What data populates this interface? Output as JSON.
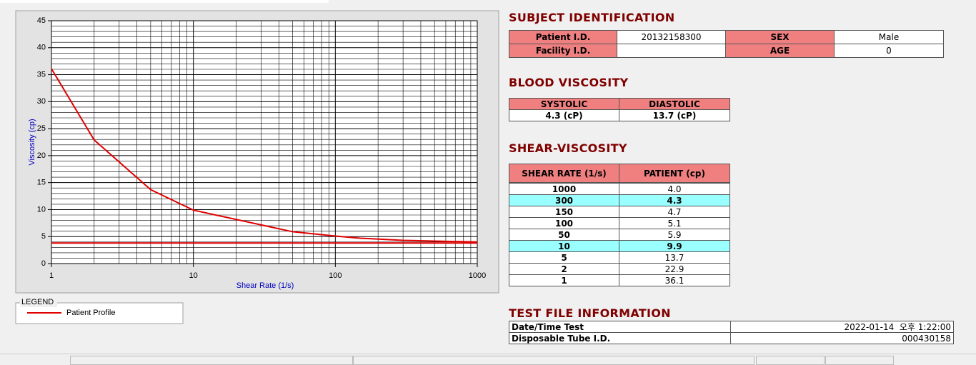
{
  "chart_data": {
    "type": "line",
    "x_label": "Shear Rate (1/s)",
    "y_label": "Viscosity (cp)",
    "xlim": [
      1,
      1000
    ],
    "xticks": [
      1,
      10,
      100,
      1000
    ],
    "xlog": true,
    "minor_xticks": [
      2,
      3,
      4,
      5,
      6,
      7,
      8,
      9,
      20,
      30,
      40,
      50,
      60,
      70,
      80,
      90,
      200,
      300,
      400,
      500,
      600,
      700,
      800,
      900
    ],
    "ylim": [
      0,
      45
    ],
    "yticks": [
      0,
      5,
      10,
      15,
      20,
      25,
      30,
      35,
      40,
      45
    ],
    "minor_yticks": [
      1,
      2,
      3,
      4,
      6,
      7,
      8,
      9,
      11,
      12,
      13,
      14,
      16,
      17,
      18,
      19,
      21,
      22,
      23,
      24,
      26,
      27,
      28,
      29,
      31,
      32,
      33,
      34,
      36,
      37,
      38,
      39,
      41,
      42,
      43,
      44
    ],
    "grid": true,
    "legend_title": "LEGEND",
    "series": [
      {
        "name": "Patient Profile",
        "color": "#e00000",
        "x": [
          1,
          2,
          5,
          10,
          50,
          100,
          150,
          300,
          1000
        ],
        "values": [
          36.1,
          22.9,
          13.7,
          9.9,
          5.9,
          5.1,
          4.7,
          4.3,
          4.0
        ]
      },
      {
        "color": "#e00000",
        "x": [
          1,
          1000
        ],
        "values": [
          3.8,
          3.8
        ]
      }
    ]
  },
  "subject": {
    "title": "SUBJECT IDENTIFICATION",
    "fields": [
      {
        "label": "Patient I.D.",
        "value": "20132158300"
      },
      {
        "label": "SEX",
        "value": "Male"
      },
      {
        "label": "Facility I.D."
      },
      {
        "label": "AGE",
        "value": "0"
      }
    ]
  },
  "blood": {
    "title": "BLOOD VISCOSITY",
    "headers": [
      "SYSTOLIC",
      "DIASTOLIC"
    ],
    "values": [
      "4.3 (cP)",
      "13.7 (cP)"
    ]
  },
  "shear": {
    "title": "SHEAR-VISCOSITY",
    "headers": [
      "SHEAR RATE (1/s)",
      "PATIENT (cp)"
    ],
    "highlight_rows": [
      1,
      5
    ],
    "rows": [
      [
        "1000",
        "4.0"
      ],
      [
        "300",
        "4.3"
      ],
      [
        "150",
        "4.7"
      ],
      [
        "100",
        "5.1"
      ],
      [
        "50",
        "5.9"
      ],
      [
        "10",
        "9.9"
      ],
      [
        "5",
        "13.7"
      ],
      [
        "2",
        "22.9"
      ],
      [
        "1",
        "36.1"
      ]
    ]
  },
  "test_file": {
    "title": "TEST FILE INFORMATION",
    "rows": [
      [
        "Date/Time Test",
        "2022-01-14  오후 1:22:00"
      ],
      [
        "Disposable Tube I.D.",
        "000430158"
      ]
    ]
  }
}
